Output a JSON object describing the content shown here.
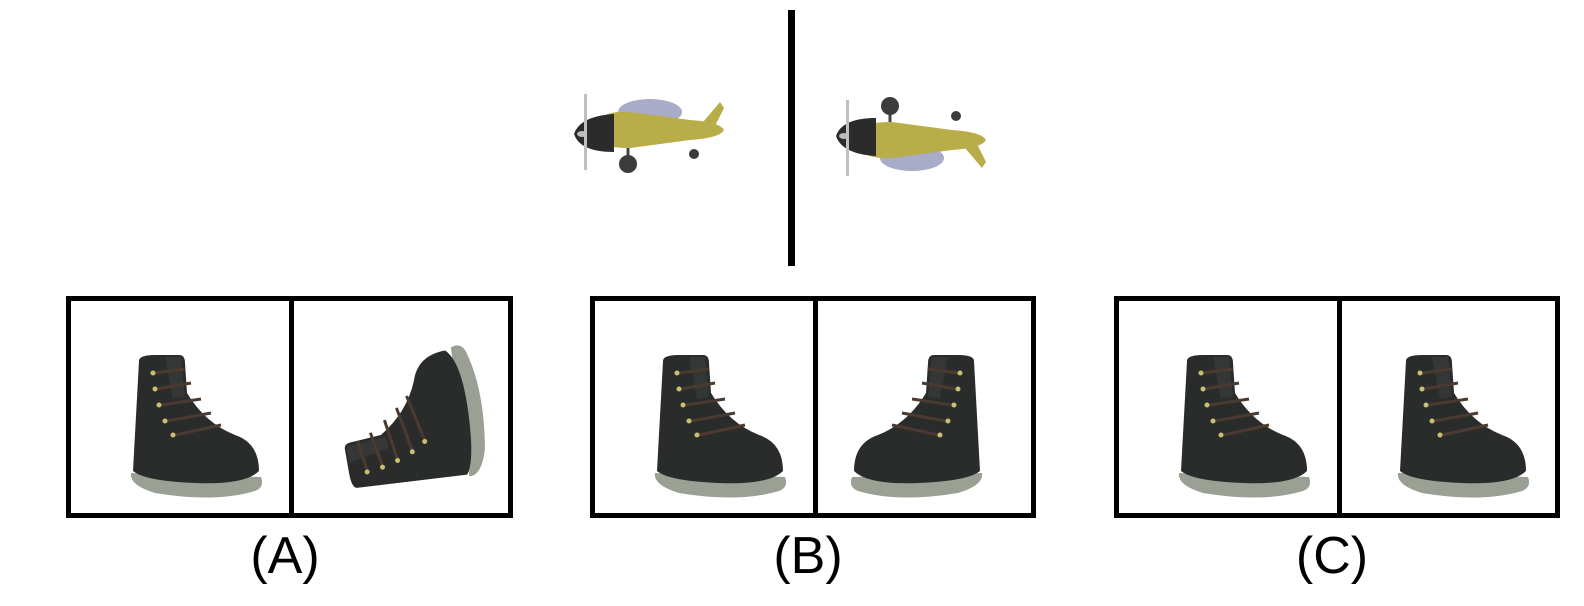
{
  "reference": {
    "left_icon": "airplane-icon",
    "right_icon": "airplane-icon"
  },
  "options": [
    {
      "label": "(A)",
      "left_icon": "shoe-icon",
      "right_icon": "shoe-icon"
    },
    {
      "label": "(B)",
      "left_icon": "shoe-icon",
      "right_icon": "shoe-icon"
    },
    {
      "label": "(C)",
      "left_icon": "shoe-icon",
      "right_icon": "shoe-icon"
    }
  ],
  "colors": {
    "plane_body": "#b9ad4a",
    "plane_nose": "#2b2b2b",
    "plane_wing": "#a9acc9",
    "shoe_upper": "#2a2c2c",
    "shoe_sole": "#9aa093",
    "lace": "#4a3a30"
  }
}
